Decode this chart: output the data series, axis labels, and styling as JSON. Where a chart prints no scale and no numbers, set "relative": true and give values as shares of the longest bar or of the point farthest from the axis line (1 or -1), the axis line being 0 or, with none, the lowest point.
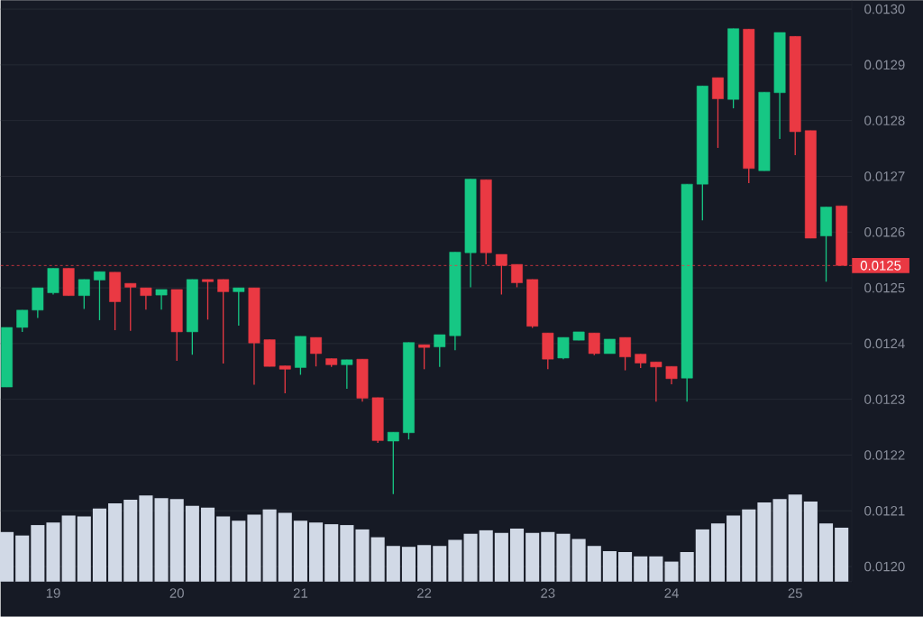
{
  "chart_data": [
    {
      "type": "candlestick",
      "x": [
        18.625,
        18.75,
        18.875,
        19,
        19.125,
        19.25,
        19.375,
        19.5,
        19.625,
        19.75,
        19.875,
        20,
        20.125,
        20.25,
        20.375,
        20.5,
        20.625,
        20.75,
        20.875,
        21,
        21.125,
        21.25,
        21.375,
        21.5,
        21.625,
        21.75,
        21.875,
        22,
        22.125,
        22.25,
        22.375,
        22.5,
        22.625,
        22.75,
        22.875,
        23,
        23.125,
        23.25,
        23.375,
        23.5,
        23.625,
        23.75,
        23.875,
        24,
        24.125,
        24.25,
        24.375,
        24.5,
        24.625,
        24.75,
        24.875,
        25,
        25.125,
        25.25,
        25.375
      ],
      "ohlc": [
        [
          0.012322,
          0.012429,
          0.012322,
          0.012429
        ],
        [
          0.012429,
          0.01246,
          0.012421,
          0.01246
        ],
        [
          0.01246,
          0.0125,
          0.012446,
          0.0125
        ],
        [
          0.012491,
          0.012535,
          0.012488,
          0.012535
        ],
        [
          0.012535,
          0.012535,
          0.012486,
          0.012486
        ],
        [
          0.012486,
          0.012515,
          0.012462,
          0.012515
        ],
        [
          0.012514,
          0.012529,
          0.012442,
          0.012529
        ],
        [
          0.012528,
          0.012528,
          0.012424,
          0.012475
        ],
        [
          0.012508,
          0.012508,
          0.012423,
          0.012501
        ],
        [
          0.0125,
          0.0125,
          0.012461,
          0.012486
        ],
        [
          0.012487,
          0.012497,
          0.012461,
          0.012497
        ],
        [
          0.012497,
          0.012497,
          0.012369,
          0.012421
        ],
        [
          0.012421,
          0.012515,
          0.01238,
          0.012515
        ],
        [
          0.012515,
          0.012515,
          0.012443,
          0.012511
        ],
        [
          0.012515,
          0.012515,
          0.012364,
          0.012493
        ],
        [
          0.012493,
          0.0125,
          0.012432,
          0.0125
        ],
        [
          0.0125,
          0.0125,
          0.012326,
          0.012401
        ],
        [
          0.012407,
          0.012407,
          0.012359,
          0.012359
        ],
        [
          0.01236,
          0.01236,
          0.012311,
          0.012354
        ],
        [
          0.012357,
          0.012413,
          0.012344,
          0.012413
        ],
        [
          0.012411,
          0.012411,
          0.012359,
          0.012382
        ],
        [
          0.012373,
          0.012373,
          0.012358,
          0.012362
        ],
        [
          0.012362,
          0.012371,
          0.012319,
          0.012371
        ],
        [
          0.012372,
          0.012372,
          0.012296,
          0.012302
        ],
        [
          0.012303,
          0.012303,
          0.012222,
          0.012226
        ],
        [
          0.012225,
          0.012241,
          0.01213,
          0.012241
        ],
        [
          0.01224,
          0.012402,
          0.012228,
          0.012402
        ],
        [
          0.012398,
          0.012398,
          0.012354,
          0.012393
        ],
        [
          0.012394,
          0.012416,
          0.012358,
          0.012416
        ],
        [
          0.012414,
          0.012564,
          0.012388,
          0.012564
        ],
        [
          0.012563,
          0.012695,
          0.012501,
          0.012695
        ],
        [
          0.012694,
          0.012694,
          0.012542,
          0.012563
        ],
        [
          0.01256,
          0.01256,
          0.012488,
          0.01254
        ],
        [
          0.012542,
          0.012542,
          0.012501,
          0.012509
        ],
        [
          0.012515,
          0.012515,
          0.012428,
          0.012431
        ],
        [
          0.012419,
          0.012419,
          0.012354,
          0.012372
        ],
        [
          0.012374,
          0.012411,
          0.012372,
          0.012411
        ],
        [
          0.012406,
          0.012421,
          0.012406,
          0.012421
        ],
        [
          0.012419,
          0.012419,
          0.012379,
          0.012382
        ],
        [
          0.012382,
          0.012408,
          0.012382,
          0.012408
        ],
        [
          0.012411,
          0.012411,
          0.012352,
          0.012376
        ],
        [
          0.012381,
          0.012381,
          0.012356,
          0.012365
        ],
        [
          0.012367,
          0.012367,
          0.012296,
          0.012358
        ],
        [
          0.012359,
          0.012359,
          0.012327,
          0.012337
        ],
        [
          0.012338,
          0.012686,
          0.012296,
          0.012686
        ],
        [
          0.012686,
          0.012862,
          0.012621,
          0.012862
        ],
        [
          0.012877,
          0.012877,
          0.012751,
          0.012839
        ],
        [
          0.012838,
          0.012965,
          0.012822,
          0.012965
        ],
        [
          0.012964,
          0.012964,
          0.012688,
          0.012714
        ],
        [
          0.01271,
          0.012851,
          0.01271,
          0.012851
        ],
        [
          0.01285,
          0.012958,
          0.012767,
          0.012958
        ],
        [
          0.012951,
          0.012951,
          0.012738,
          0.01278
        ],
        [
          0.012782,
          0.012782,
          0.012589,
          0.012589
        ],
        [
          0.012593,
          0.012645,
          0.012511,
          0.012645
        ],
        [
          0.012647,
          0.012647,
          0.01254,
          0.01254
        ]
      ],
      "colors": [
        "#16c784",
        "#16c784",
        "#16c784",
        "#16c784",
        "#ea3943",
        "#16c784",
        "#16c784",
        "#ea3943",
        "#ea3943",
        "#ea3943",
        "#16c784",
        "#ea3943",
        "#16c784",
        "#ea3943",
        "#ea3943",
        "#16c784",
        "#ea3943",
        "#ea3943",
        "#ea3943",
        "#16c784",
        "#ea3943",
        "#ea3943",
        "#16c784",
        "#ea3943",
        "#ea3943",
        "#16c784",
        "#16c784",
        "#ea3943",
        "#16c784",
        "#16c784",
        "#16c784",
        "#ea3943",
        "#ea3943",
        "#ea3943",
        "#ea3943",
        "#ea3943",
        "#16c784",
        "#16c784",
        "#ea3943",
        "#16c784",
        "#ea3943",
        "#ea3943",
        "#ea3943",
        "#ea3943",
        "#16c784",
        "#16c784",
        "#ea3943",
        "#16c784",
        "#ea3943",
        "#16c784",
        "#16c784",
        "#ea3943",
        "#ea3943",
        "#16c784",
        "#ea3943"
      ],
      "xlim": [
        18.575,
        25.458
      ],
      "ylim": [
        0.011973,
        0.013016
      ],
      "xticks": [
        19,
        20,
        21,
        22,
        23,
        24,
        25
      ],
      "yticks": [
        {
          "value": 0.012,
          "label": "0.0120"
        },
        0.0121,
        0.0122,
        0.0123,
        0.0124,
        0.0125,
        0.0126,
        0.0127,
        0.0128,
        0.0129,
        {
          "value": 0.013,
          "label": "0.0130"
        }
      ],
      "grid": "y",
      "ref_lines": [
        {
          "axis": "y",
          "value": 0.01254,
          "label": "0.0125",
          "color": "#ea3943",
          "line_style": "dashed"
        }
      ]
    },
    {
      "type": "bar",
      "relative": true,
      "x": [
        18.625,
        18.75,
        18.875,
        19,
        19.125,
        19.25,
        19.375,
        19.5,
        19.625,
        19.75,
        19.875,
        20,
        20.125,
        20.25,
        20.375,
        20.5,
        20.625,
        20.75,
        20.875,
        21,
        21.125,
        21.25,
        21.375,
        21.5,
        21.625,
        21.75,
        21.875,
        22,
        22.125,
        22.25,
        22.375,
        22.5,
        22.625,
        22.75,
        22.875,
        23,
        23.125,
        23.25,
        23.375,
        23.5,
        23.625,
        23.75,
        23.875,
        24,
        24.125,
        24.25,
        24.375,
        24.5,
        24.625,
        24.75,
        24.875,
        25,
        25.125,
        25.25,
        25.375
      ],
      "values": [
        0.57,
        0.53,
        0.65,
        0.68,
        0.76,
        0.75,
        0.84,
        0.9,
        0.94,
        0.99,
        0.96,
        0.95,
        0.87,
        0.85,
        0.75,
        0.7,
        0.77,
        0.83,
        0.79,
        0.7,
        0.68,
        0.66,
        0.65,
        0.6,
        0.51,
        0.41,
        0.4,
        0.42,
        0.41,
        0.48,
        0.55,
        0.59,
        0.56,
        0.61,
        0.56,
        0.57,
        0.55,
        0.49,
        0.41,
        0.35,
        0.34,
        0.29,
        0.29,
        0.23,
        0.34,
        0.6,
        0.67,
        0.76,
        0.83,
        0.91,
        0.95,
        1,
        0.92,
        0.67,
        0.62
      ],
      "color": "#d1d9e6",
      "xlim": [
        18.575,
        25.458
      ]
    }
  ]
}
